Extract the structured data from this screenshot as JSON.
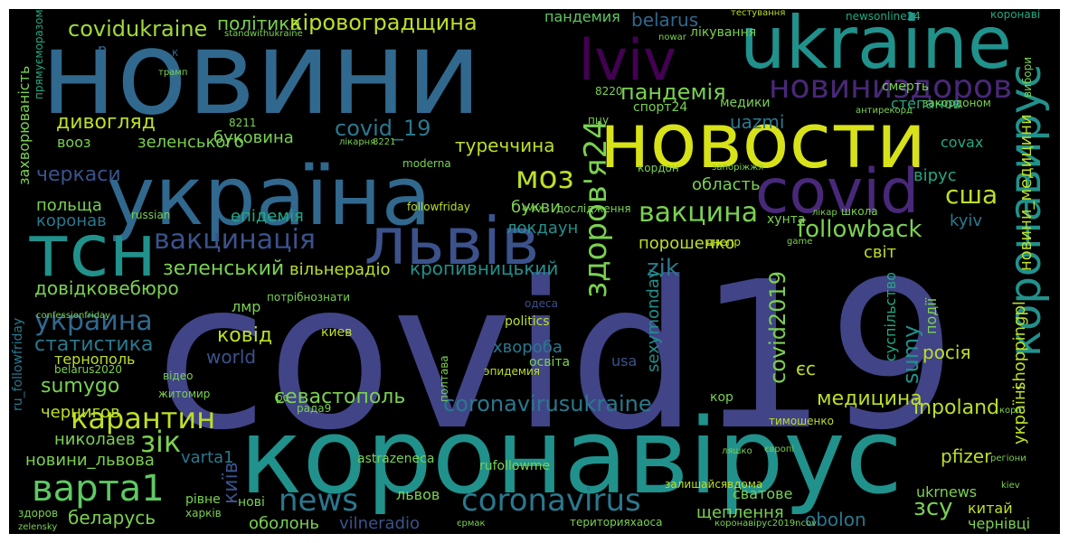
{
  "words": [
    "новини",
    "covid19",
    "коронавірус",
    "ukraine",
    "новости",
    "україна",
    "тсн",
    "львів",
    "covid",
    "lviv",
    "коронавирус",
    "новиниздоров",
    "пандемія",
    "covidukraine",
    "політика",
    "кіровоградщина",
    "пандемия",
    "belarus",
    "здоров'я24",
    "моз",
    "вакцина",
    "вакцинація",
    "followback",
    "сша",
    "дивогляд",
    "covid_19",
    "туреччина",
    "uazmi",
    "степанов",
    "буковина",
    "зеленського",
    "вооз",
    "черкаси",
    "букви",
    "локдаун",
    "область",
    "вірус",
    "covax",
    "польща",
    "коронав",
    "епідемія",
    "порошенко",
    "хунта",
    "kyiv",
    "зеленський",
    "вільнерадіо",
    "кропивницький",
    "zik",
    "світ",
    "довідковебюро",
    "украина",
    "covid2019",
    "суспільство",
    "sumy",
    "події",
    "новини_медицини",
    "shoppingpl",
    "україні",
    "статистика",
    "тернополь",
    "ковід",
    "лмр",
    "world",
    "хвороба",
    "politics",
    "одеса",
    "usa",
    "єс",
    "росія",
    "sumygo",
    "севастополь",
    "coronavirusukraine",
    "медицина",
    "inpoland",
    "карантин",
    "зік",
    "варта1",
    "news",
    "coronavirus",
    "київ",
    "чернигов",
    "николаев",
    "новини_львова",
    "varta1",
    "беларусь",
    "оболонь",
    "vilneradio",
    "львов",
    "сватове",
    "щеплення",
    "obolon",
    "зсу",
    "pfizer",
    "ukrnews",
    "китай",
    "чернівці",
    "rufollowme",
    "astrazeneca",
    "followfriday",
    "sexymonday",
    "здоров",
    "zelensky",
    "рівне",
    "нові",
    "захворюваність",
    "прямуєморазом",
    "лікування",
    "медики",
    "спорт24",
    "пцу",
    "8220",
    "смерть",
    "закордоном",
    "антирекорд",
    "тестування",
    "newsonline24",
    "вибори",
    "коронаві",
    "nowar",
    "standwithukraine",
    "трамп",
    "р",
    "к",
    "8211",
    "ru_followfriday",
    "belarus2020",
    "відео",
    "житомир",
    "рс",
    "рада9",
    "эпидемия",
    "освіта",
    "кор",
    "тимошенко",
    "європі",
    "коро",
    "регіони",
    "kiev",
    "ляшко",
    "залишайсявдома",
    "коронавірус2019ncov",
    "територияхаоса",
    "єрмак",
    "харків",
    "киев",
    "потрібнознати",
    "confessionfriday",
    "полтава",
    "школа",
    "лікар",
    "game",
    "днепр",
    "8221",
    "лікарня",
    "moderna",
    "кордон",
    "запоріжжя",
    "russian",
    "avax",
    "дослідження"
  ]
}
